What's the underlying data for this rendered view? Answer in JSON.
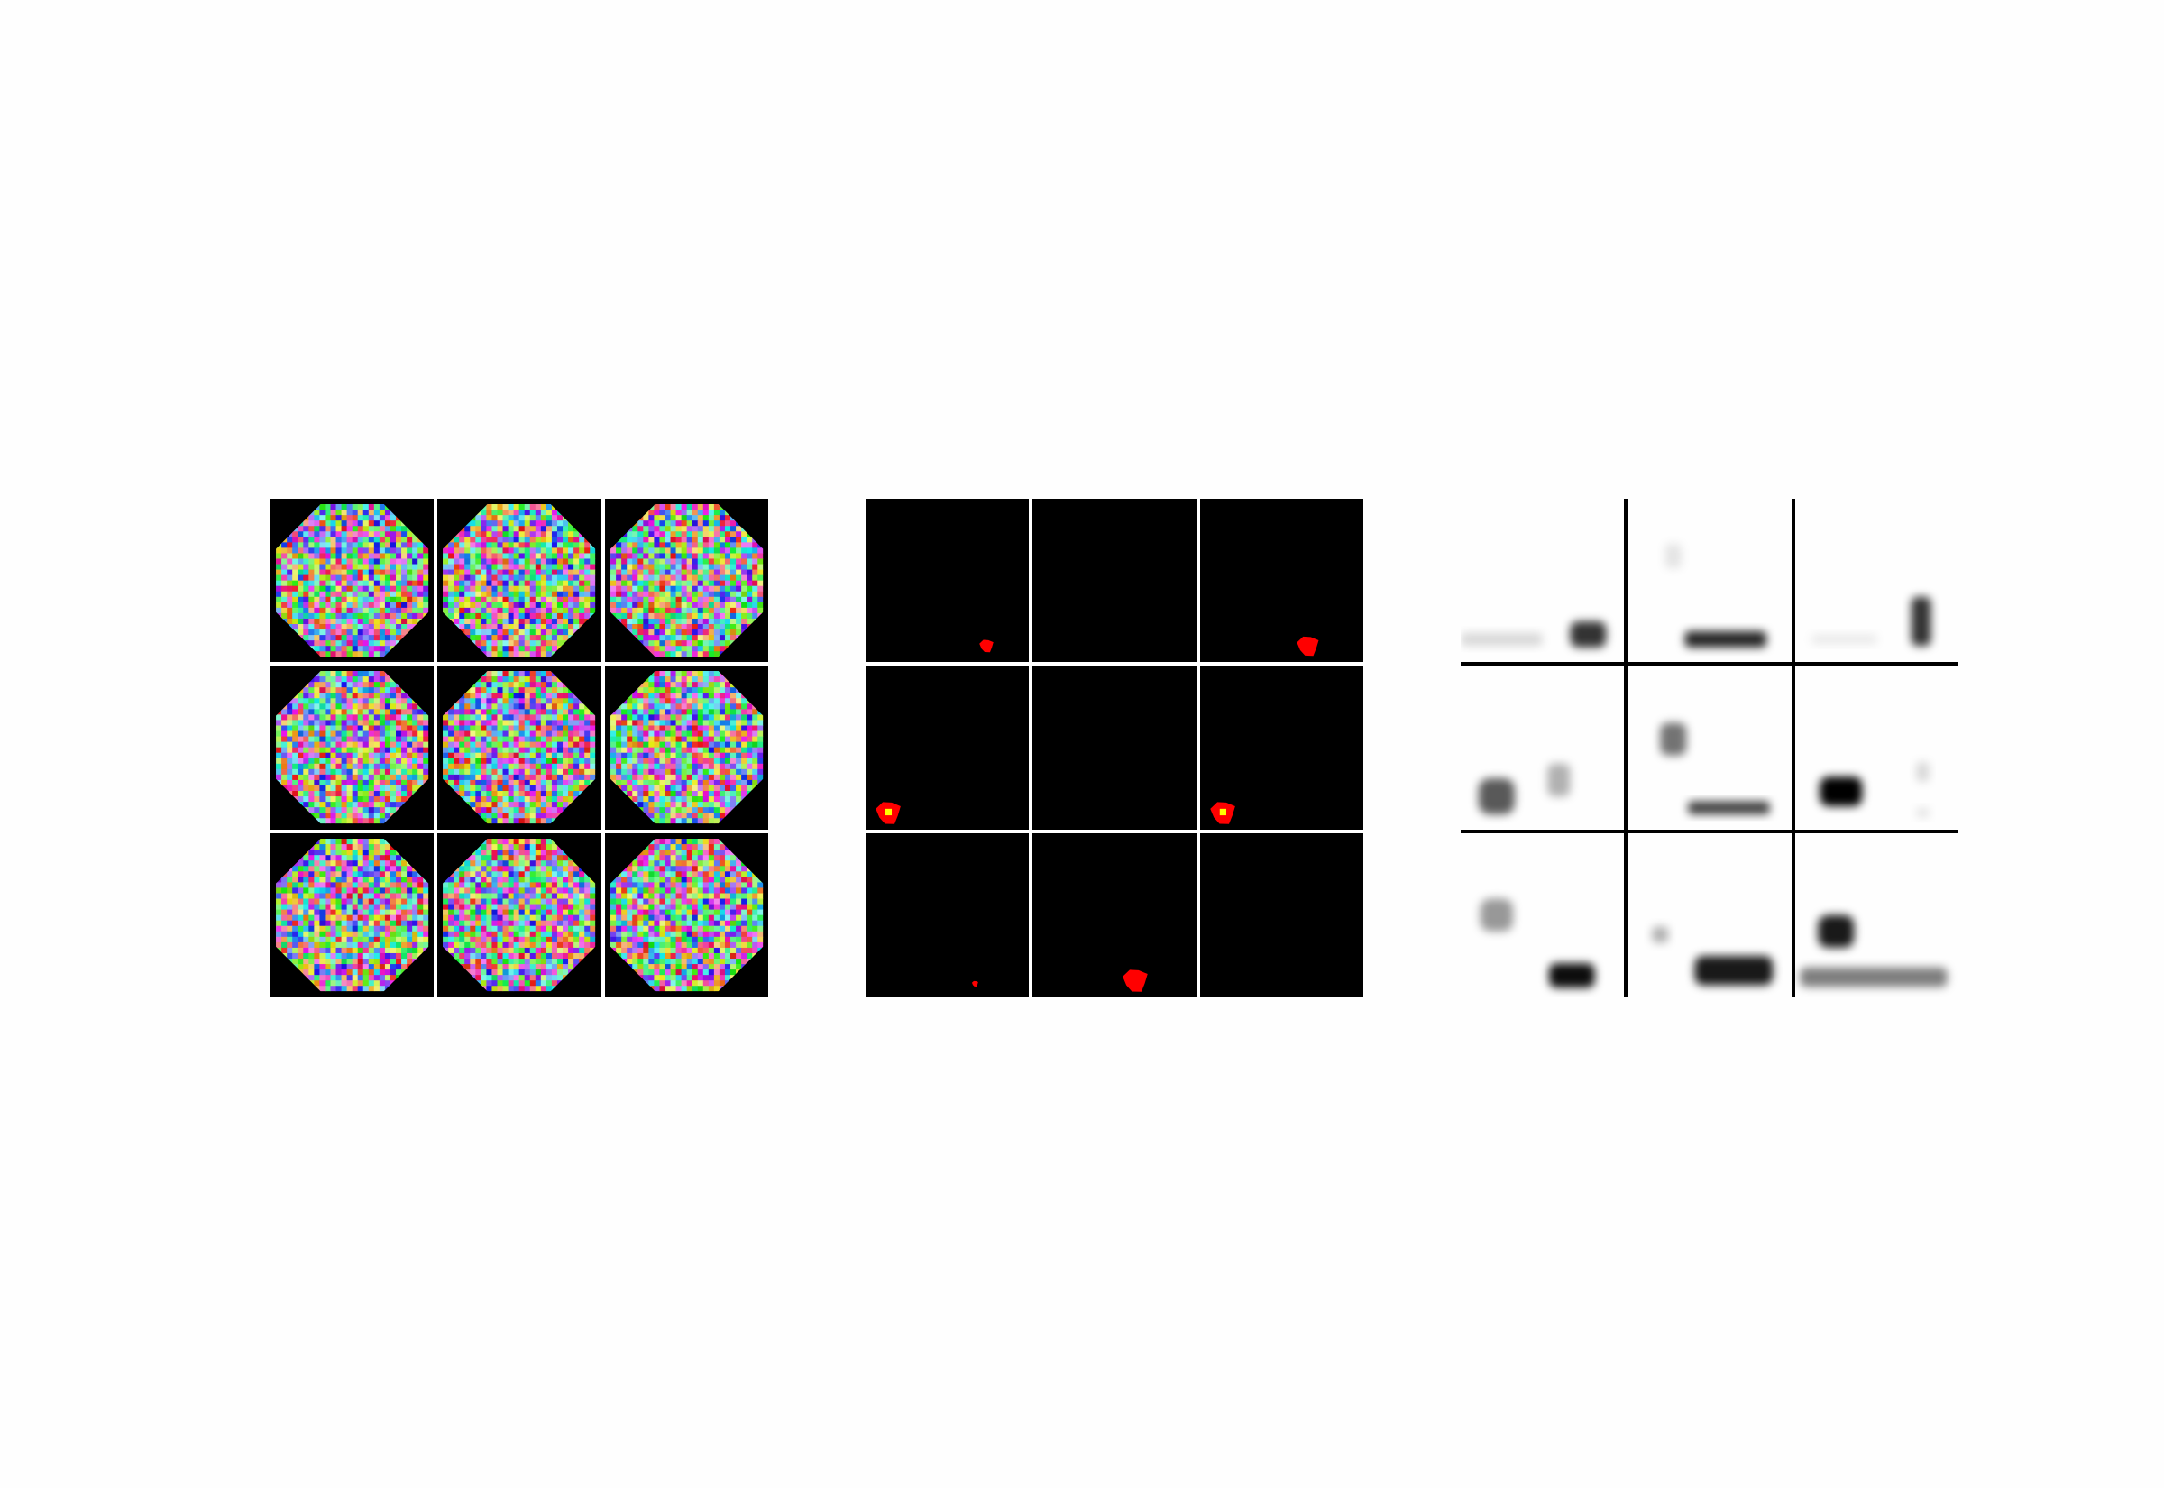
{
  "panels": [
    {
      "id": "tile-mosaic",
      "cells": [
        {
          "seed": 11,
          "palette": "rainbow"
        },
        {
          "seed": 23,
          "palette": "rainbow"
        },
        {
          "seed": 37,
          "palette": "rainbow"
        },
        {
          "seed": 41,
          "palette": "rainbow"
        },
        {
          "seed": 53,
          "palette": "rainbow"
        },
        {
          "seed": 67,
          "palette": "rainbow"
        },
        {
          "seed": 71,
          "palette": "rainbow"
        },
        {
          "seed": 83,
          "palette": "rainbow"
        },
        {
          "seed": 97,
          "palette": "rainbow"
        }
      ],
      "colors": {
        "background": "#000000",
        "separator": "#ffffff"
      }
    },
    {
      "id": "heat-spots",
      "cells": [
        {
          "spot": {
            "fx": 0.74,
            "fy": 0.9,
            "size": 0.09,
            "hot": false
          }
        },
        {
          "spot": null
        },
        {
          "spot": {
            "fx": 0.66,
            "fy": 0.9,
            "size": 0.14,
            "hot": false
          }
        },
        {
          "spot": {
            "fx": 0.14,
            "fy": 0.9,
            "size": 0.16,
            "hot": true
          }
        },
        {
          "spot": null
        },
        {
          "spot": {
            "fx": 0.14,
            "fy": 0.9,
            "size": 0.16,
            "hot": true
          }
        },
        {
          "spot": {
            "fx": 0.67,
            "fy": 0.92,
            "size": 0.04,
            "hot": false
          }
        },
        {
          "spot": {
            "fx": 0.63,
            "fy": 0.9,
            "size": 0.16,
            "hot": false
          }
        },
        {
          "spot": null
        }
      ],
      "colors": {
        "background": "#000000",
        "spot": "#ff0000",
        "core": "#ffff00",
        "separator": "#ffffff"
      }
    },
    {
      "id": "grayscale-blurs",
      "cells": [
        {
          "blobs": [
            {
              "fx": 0.25,
              "fy": 0.86,
              "w": 0.5,
              "h": 0.08,
              "op": 0.15
            },
            {
              "fx": 0.78,
              "fy": 0.83,
              "w": 0.22,
              "h": 0.16,
              "op": 0.8
            }
          ]
        },
        {
          "blobs": [
            {
              "fx": 0.28,
              "fy": 0.35,
              "w": 0.1,
              "h": 0.15,
              "op": 0.1
            },
            {
              "fx": 0.6,
              "fy": 0.86,
              "w": 0.5,
              "h": 0.1,
              "op": 0.85
            }
          ]
        },
        {
          "blobs": [
            {
              "fx": 0.3,
              "fy": 0.86,
              "w": 0.4,
              "h": 0.06,
              "op": 0.08
            },
            {
              "fx": 0.77,
              "fy": 0.75,
              "w": 0.12,
              "h": 0.3,
              "op": 0.8
            }
          ]
        },
        {
          "blobs": [
            {
              "fx": 0.22,
              "fy": 0.8,
              "w": 0.22,
              "h": 0.22,
              "op": 0.65
            },
            {
              "fx": 0.6,
              "fy": 0.7,
              "w": 0.14,
              "h": 0.2,
              "op": 0.3
            }
          ]
        },
        {
          "blobs": [
            {
              "fx": 0.28,
              "fy": 0.45,
              "w": 0.16,
              "h": 0.2,
              "op": 0.55
            },
            {
              "fx": 0.62,
              "fy": 0.87,
              "w": 0.5,
              "h": 0.08,
              "op": 0.75
            }
          ]
        },
        {
          "blobs": [
            {
              "fx": 0.28,
              "fy": 0.77,
              "w": 0.26,
              "h": 0.18,
              "op": 1.0
            },
            {
              "fx": 0.78,
              "fy": 0.65,
              "w": 0.08,
              "h": 0.12,
              "op": 0.15
            },
            {
              "fx": 0.78,
              "fy": 0.9,
              "w": 0.08,
              "h": 0.06,
              "op": 0.1
            }
          ]
        },
        {
          "blobs": [
            {
              "fx": 0.22,
              "fy": 0.5,
              "w": 0.2,
              "h": 0.2,
              "op": 0.4
            },
            {
              "fx": 0.68,
              "fy": 0.87,
              "w": 0.28,
              "h": 0.15,
              "op": 0.95
            }
          ]
        },
        {
          "blobs": [
            {
              "fx": 0.2,
              "fy": 0.62,
              "w": 0.1,
              "h": 0.1,
              "op": 0.3
            },
            {
              "fx": 0.65,
              "fy": 0.84,
              "w": 0.48,
              "h": 0.18,
              "op": 0.9
            }
          ]
        },
        {
          "blobs": [
            {
              "fx": 0.25,
              "fy": 0.6,
              "w": 0.22,
              "h": 0.2,
              "op": 0.9
            },
            {
              "fx": 0.48,
              "fy": 0.88,
              "w": 0.9,
              "h": 0.12,
              "op": 0.5
            }
          ]
        }
      ],
      "colors": {
        "background": "#fefefe",
        "ink": "#000000",
        "separator": "#000000"
      }
    }
  ]
}
